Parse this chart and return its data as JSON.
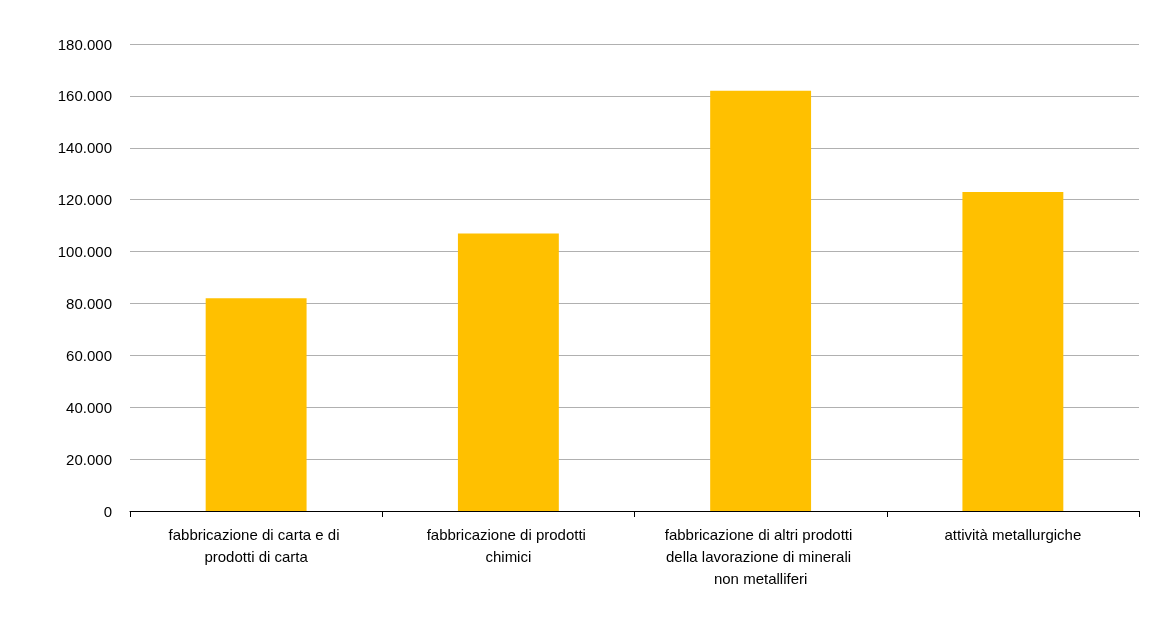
{
  "chart_data": {
    "type": "bar",
    "categories": [
      "fabbricazione di carta e di prodotti di carta",
      "fabbricazione di prodotti chimici",
      "fabbricazione di altri prodotti della lavorazione di minerali non metalliferi",
      "attività metallurgiche"
    ],
    "values": [
      82000,
      107000,
      162000,
      123000
    ],
    "color": "#ffc000",
    "ylim": [
      0,
      180000
    ],
    "yticks": [
      {
        "value": 0,
        "label": "0"
      },
      {
        "value": 20000,
        "label": "20.000"
      },
      {
        "value": 40000,
        "label": "40.000"
      },
      {
        "value": 60000,
        "label": "60.000"
      },
      {
        "value": 80000,
        "label": "80.000"
      },
      {
        "value": 100000,
        "label": "100.000"
      },
      {
        "value": 120000,
        "label": "120.000"
      },
      {
        "value": 140000,
        "label": "140.000"
      },
      {
        "value": 160000,
        "label": "160.000"
      },
      {
        "value": 180000,
        "label": "180.000"
      }
    ],
    "grid": "y"
  }
}
